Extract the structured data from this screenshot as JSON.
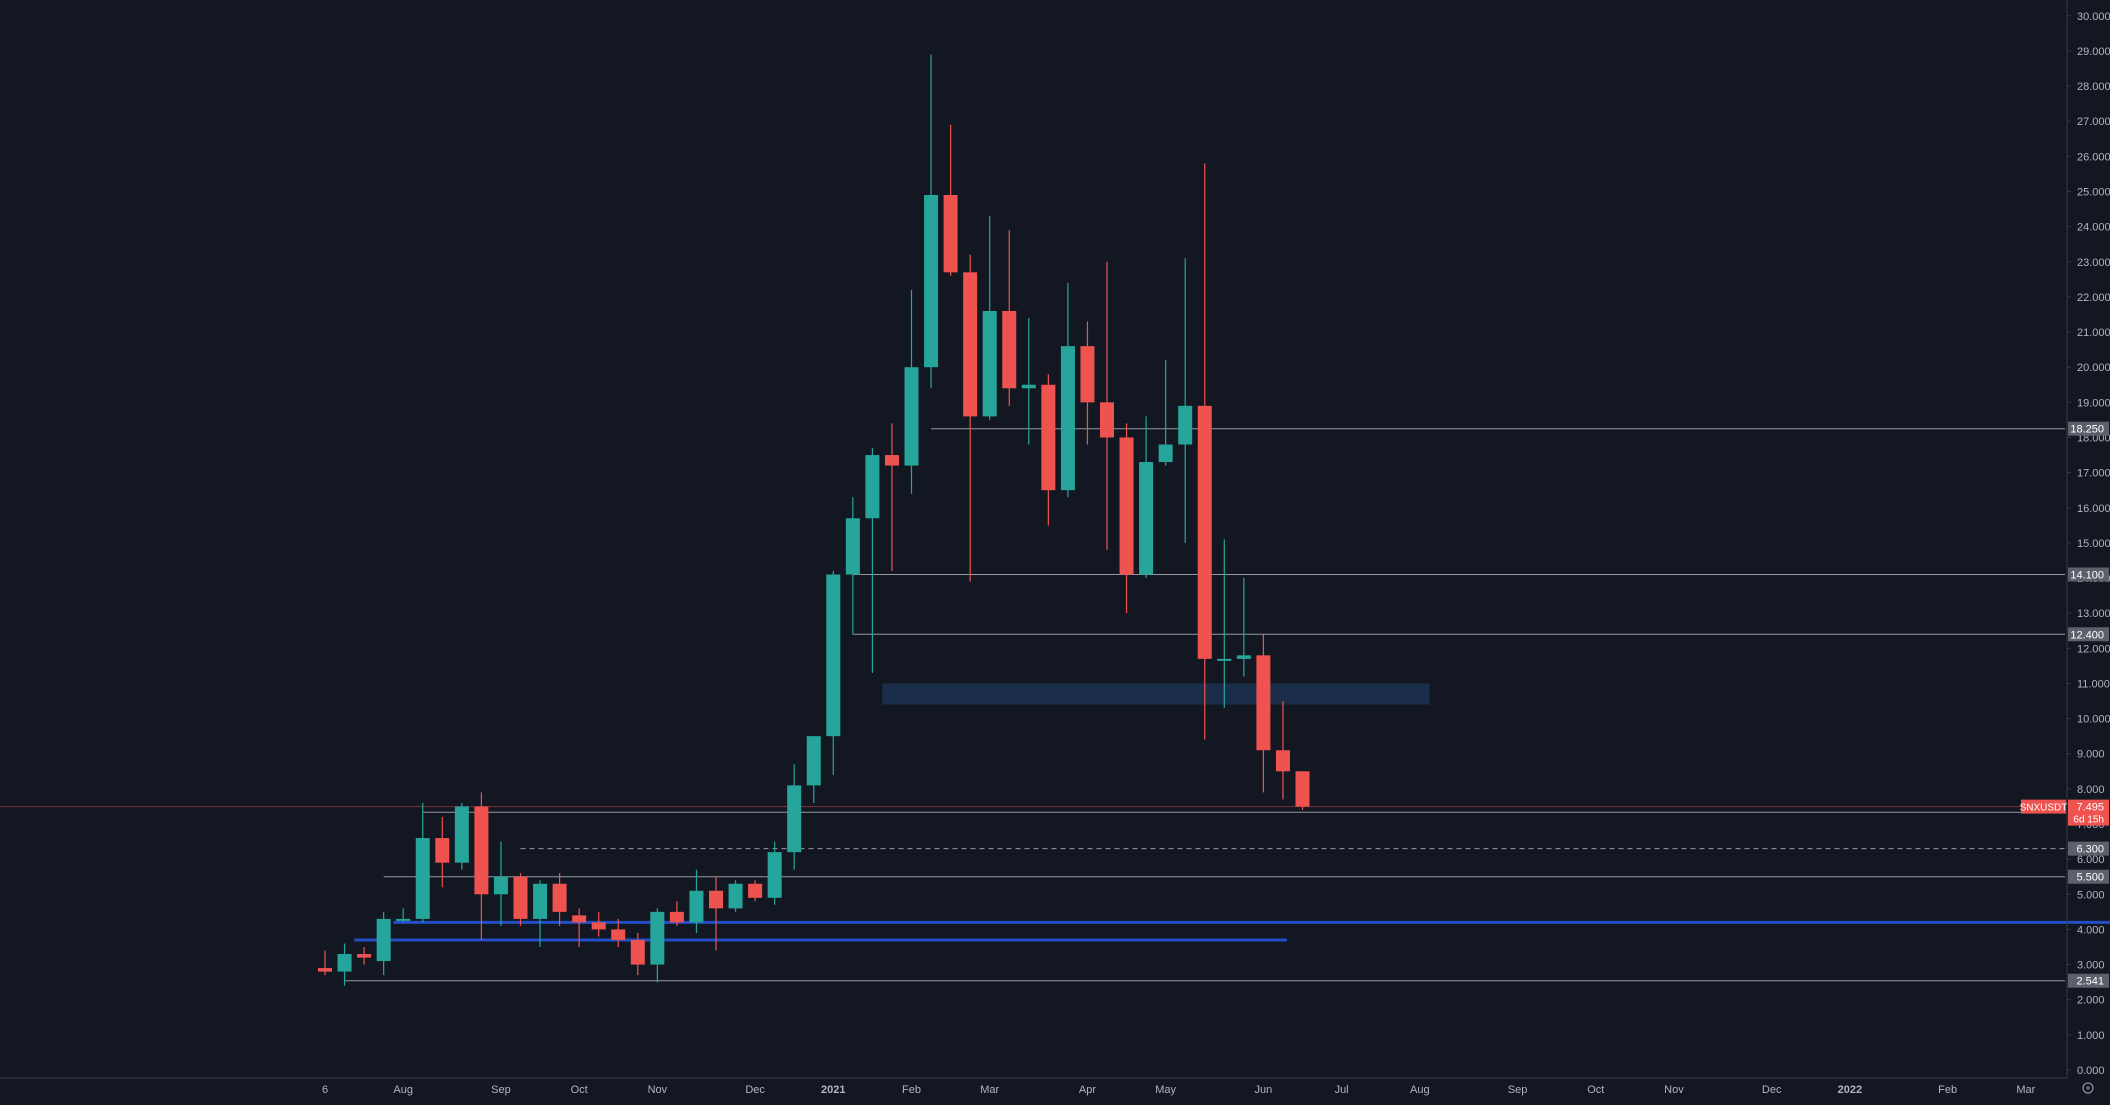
{
  "colors": {
    "background": "#131722",
    "up": "#26a69a",
    "down": "#ef5350",
    "axis_text": "#b2b5be",
    "axis_line": "#363a45",
    "level_line": "#9598a1",
    "level_badge": "#5d606b",
    "support_line": "#2962ff",
    "zone": "#1e3a5f",
    "price_badge": "#ef5350"
  },
  "chart_data": {
    "type": "candlestick",
    "symbol": "SNXUSDT",
    "timeframe": "weekly",
    "ylim": [
      0,
      30
    ],
    "y_ticks": [
      "0.000",
      "1.000",
      "2.000",
      "3.000",
      "4.000",
      "5.000",
      "6.000",
      "7.000",
      "8.000",
      "9.000",
      "10.000",
      "11.000",
      "12.000",
      "13.000",
      "14.000",
      "15.000",
      "16.000",
      "17.000",
      "18.000",
      "19.000",
      "20.000",
      "21.000",
      "22.000",
      "23.000",
      "24.000",
      "25.000",
      "26.000",
      "27.000",
      "28.000",
      "29.000",
      "30.000"
    ],
    "x_ticks": [
      {
        "label": "6",
        "week": 0
      },
      {
        "label": "Aug",
        "week": 4
      },
      {
        "label": "Sep",
        "week": 9
      },
      {
        "label": "Oct",
        "week": 13
      },
      {
        "label": "Nov",
        "week": 17
      },
      {
        "label": "Dec",
        "week": 22
      },
      {
        "label": "2021",
        "week": 26,
        "bold": true
      },
      {
        "label": "Feb",
        "week": 30
      },
      {
        "label": "Mar",
        "week": 34
      },
      {
        "label": "Apr",
        "week": 39
      },
      {
        "label": "May",
        "week": 43
      },
      {
        "label": "Jun",
        "week": 48
      },
      {
        "label": "Jul",
        "week": 52
      },
      {
        "label": "Aug",
        "week": 56
      },
      {
        "label": "Sep",
        "week": 61
      },
      {
        "label": "Oct",
        "week": 65
      },
      {
        "label": "Nov",
        "week": 69
      },
      {
        "label": "Dec",
        "week": 74
      },
      {
        "label": "2022",
        "week": 78,
        "bold": true
      },
      {
        "label": "Feb",
        "week": 83
      },
      {
        "label": "Mar",
        "week": 87
      }
    ],
    "candles": [
      {
        "o": 2.9,
        "h": 3.4,
        "l": 2.7,
        "c": 2.8
      },
      {
        "o": 2.8,
        "h": 3.6,
        "l": 2.4,
        "c": 3.3
      },
      {
        "o": 3.3,
        "h": 3.5,
        "l": 3.0,
        "c": 3.2
      },
      {
        "o": 3.1,
        "h": 4.5,
        "l": 2.7,
        "c": 4.3
      },
      {
        "o": 4.3,
        "h": 4.6,
        "l": 4.2,
        "c": 4.3
      },
      {
        "o": 4.3,
        "h": 7.6,
        "l": 4.2,
        "c": 6.6
      },
      {
        "o": 6.6,
        "h": 7.2,
        "l": 5.2,
        "c": 5.9
      },
      {
        "o": 5.9,
        "h": 7.6,
        "l": 5.7,
        "c": 7.5
      },
      {
        "o": 7.5,
        "h": 7.9,
        "l": 3.7,
        "c": 5.0
      },
      {
        "o": 5.0,
        "h": 6.5,
        "l": 4.1,
        "c": 5.5
      },
      {
        "o": 5.5,
        "h": 5.6,
        "l": 4.1,
        "c": 4.3
      },
      {
        "o": 4.3,
        "h": 5.4,
        "l": 3.5,
        "c": 5.3
      },
      {
        "o": 5.3,
        "h": 5.6,
        "l": 4.1,
        "c": 4.5
      },
      {
        "o": 4.4,
        "h": 4.6,
        "l": 3.5,
        "c": 4.2
      },
      {
        "o": 4.2,
        "h": 4.5,
        "l": 3.8,
        "c": 4.0
      },
      {
        "o": 4.0,
        "h": 4.3,
        "l": 3.5,
        "c": 3.7
      },
      {
        "o": 3.7,
        "h": 3.9,
        "l": 2.7,
        "c": 3.0
      },
      {
        "o": 3.0,
        "h": 4.6,
        "l": 2.5,
        "c": 4.5
      },
      {
        "o": 4.5,
        "h": 4.8,
        "l": 4.1,
        "c": 4.2
      },
      {
        "o": 4.2,
        "h": 5.7,
        "l": 3.9,
        "c": 5.1
      },
      {
        "o": 5.1,
        "h": 5.5,
        "l": 3.4,
        "c": 4.6
      },
      {
        "o": 4.6,
        "h": 5.4,
        "l": 4.5,
        "c": 5.3
      },
      {
        "o": 5.3,
        "h": 5.4,
        "l": 4.8,
        "c": 4.9
      },
      {
        "o": 4.9,
        "h": 6.5,
        "l": 4.7,
        "c": 6.2
      },
      {
        "o": 6.2,
        "h": 8.7,
        "l": 5.7,
        "c": 8.1
      },
      {
        "o": 8.1,
        "h": 9.5,
        "l": 7.6,
        "c": 9.5
      },
      {
        "o": 9.5,
        "h": 14.2,
        "l": 8.4,
        "c": 14.1
      },
      {
        "o": 14.1,
        "h": 16.3,
        "l": 12.4,
        "c": 15.7
      },
      {
        "o": 15.7,
        "h": 17.7,
        "l": 11.3,
        "c": 17.5
      },
      {
        "o": 17.5,
        "h": 18.4,
        "l": 14.2,
        "c": 17.2
      },
      {
        "o": 17.2,
        "h": 22.2,
        "l": 16.4,
        "c": 20.0
      },
      {
        "o": 20.0,
        "h": 28.9,
        "l": 19.4,
        "c": 24.9
      },
      {
        "o": 24.9,
        "h": 26.9,
        "l": 22.6,
        "c": 22.7
      },
      {
        "o": 22.7,
        "h": 23.2,
        "l": 13.9,
        "c": 18.6
      },
      {
        "o": 18.6,
        "h": 24.3,
        "l": 18.5,
        "c": 21.6
      },
      {
        "o": 21.6,
        "h": 23.9,
        "l": 18.9,
        "c": 19.4
      },
      {
        "o": 19.4,
        "h": 21.4,
        "l": 17.8,
        "c": 19.5
      },
      {
        "o": 19.5,
        "h": 19.8,
        "l": 15.5,
        "c": 16.5
      },
      {
        "o": 16.5,
        "h": 22.4,
        "l": 16.3,
        "c": 20.6
      },
      {
        "o": 20.6,
        "h": 21.3,
        "l": 17.8,
        "c": 19.0
      },
      {
        "o": 19.0,
        "h": 23.0,
        "l": 14.8,
        "c": 18.0
      },
      {
        "o": 18.0,
        "h": 18.4,
        "l": 13.0,
        "c": 14.1
      },
      {
        "o": 14.1,
        "h": 18.6,
        "l": 14.0,
        "c": 17.3
      },
      {
        "o": 17.3,
        "h": 20.2,
        "l": 17.2,
        "c": 17.8
      },
      {
        "o": 17.8,
        "h": 23.1,
        "l": 15.0,
        "c": 18.9
      },
      {
        "o": 18.9,
        "h": 25.8,
        "l": 9.4,
        "c": 11.7
      },
      {
        "o": 11.7,
        "h": 15.1,
        "l": 10.3,
        "c": 11.7
      },
      {
        "o": 11.7,
        "h": 14.0,
        "l": 11.2,
        "c": 11.8
      },
      {
        "o": 11.8,
        "h": 12.4,
        "l": 7.9,
        "c": 9.1
      },
      {
        "o": 9.1,
        "h": 10.5,
        "l": 7.7,
        "c": 8.5
      },
      {
        "o": 8.5,
        "h": 8.5,
        "l": 7.4,
        "c": 7.495
      }
    ],
    "levels": [
      {
        "price": 18.25,
        "label": "18.250",
        "from_week": 31
      },
      {
        "price": 14.1,
        "label": "14.100",
        "from_week": 27
      },
      {
        "price": 12.4,
        "label": "12.400",
        "from_week": 27
      },
      {
        "price": 7.336,
        "label": "7.336",
        "from_week": 5
      },
      {
        "price": 6.3,
        "label": "6.300",
        "from_week": 10,
        "dashed": true
      },
      {
        "price": 5.5,
        "label": "5.500",
        "from_week": 3
      },
      {
        "price": 2.541,
        "label": "2.541",
        "from_week": 1
      }
    ],
    "support_lines": [
      {
        "price": 4.2,
        "from_week": 3.5,
        "to_week": 93
      },
      {
        "price": 3.7,
        "from_week": 1.5,
        "to_week": 49.2
      }
    ],
    "zone": {
      "top": 11.0,
      "bottom": 10.4,
      "from_week": 28.5,
      "to_week": 56.5
    },
    "current_price": {
      "price": 7.495,
      "label": "7.495",
      "symbol_label": "SNXUSDT",
      "countdown": "6d 15h"
    }
  }
}
